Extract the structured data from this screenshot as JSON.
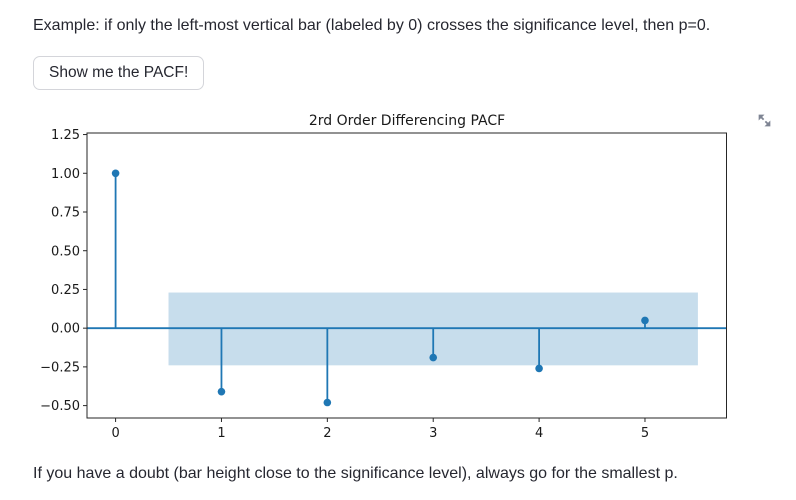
{
  "page": {
    "intro_text": "Example: if only the left-most vertical bar (labeled by 0) crosses the significance level, then p=0.",
    "button_label": "Show me the PACF!",
    "footer_text": "If you have a doubt (bar height close to the significance level), always go for the smallest p."
  },
  "icons": {
    "fullscreen": "expand-arrows-icon"
  },
  "chart_data": {
    "type": "stem",
    "title": "2rd Order Differencing PACF",
    "xlabel": "",
    "ylabel": "",
    "x": [
      0,
      1,
      2,
      3,
      4,
      5
    ],
    "values": [
      1.0,
      -0.41,
      -0.48,
      -0.19,
      -0.26,
      0.05
    ],
    "significance_band": {
      "x_start": 0.5,
      "x_end": 5.5,
      "lower": -0.24,
      "upper": 0.23
    },
    "x_ticks": [
      0,
      1,
      2,
      3,
      4,
      5
    ],
    "y_ticks": [
      1.25,
      1.0,
      0.75,
      0.5,
      0.25,
      0.0,
      -0.25,
      -0.5
    ],
    "xlim": [
      -0.27,
      5.77
    ],
    "ylim": [
      -0.58,
      1.26
    ],
    "grid": false,
    "legend": "none",
    "colors": {
      "stem": "#1f77b4",
      "marker": "#1f77b4",
      "baseline": "#1f77b4",
      "band": "#1f77b4",
      "band_opacity": 0.25,
      "spine": "#262626",
      "icon": "#7e8493"
    }
  }
}
